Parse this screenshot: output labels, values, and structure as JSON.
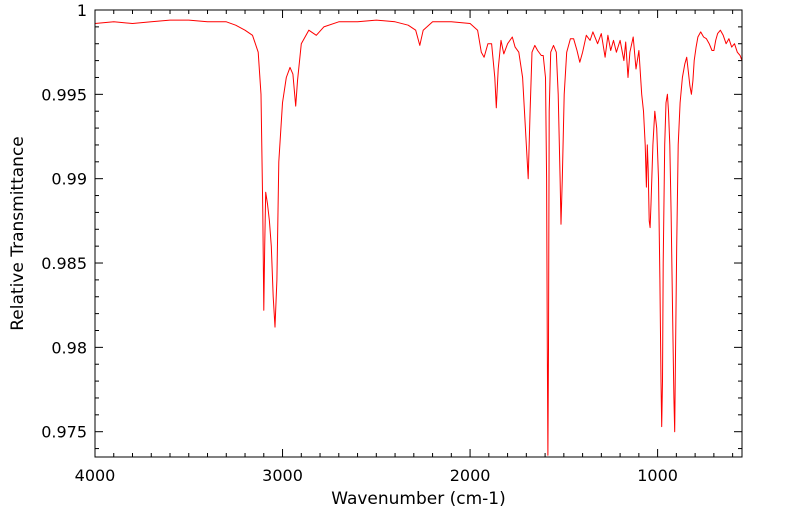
{
  "chart_data": {
    "type": "line",
    "title": "",
    "xlabel": "Wavenumber (cm-1)",
    "ylabel": "Relative Transmittance",
    "xlim": [
      4000,
      550
    ],
    "ylim": [
      0.9735,
      1.0
    ],
    "x_ticks": [
      {
        "value": 4000,
        "label": "4000"
      },
      {
        "value": 3000,
        "label": "3000"
      },
      {
        "value": 2000,
        "label": "2000"
      },
      {
        "value": 1000,
        "label": "1000"
      }
    ],
    "y_ticks": [
      {
        "value": 1.0,
        "label": "1"
      },
      {
        "value": 0.995,
        "label": "0.995"
      },
      {
        "value": 0.99,
        "label": "0.99"
      },
      {
        "value": 0.985,
        "label": "0.985"
      },
      {
        "value": 0.98,
        "label": "0.98"
      },
      {
        "value": 0.975,
        "label": "0.975"
      }
    ],
    "grid": false,
    "series": [
      {
        "color": "#ff0000",
        "points": [
          [
            4000,
            0.9992
          ],
          [
            3900,
            0.9993
          ],
          [
            3800,
            0.9992
          ],
          [
            3700,
            0.9993
          ],
          [
            3600,
            0.9994
          ],
          [
            3500,
            0.9994
          ],
          [
            3400,
            0.9993
          ],
          [
            3300,
            0.9993
          ],
          [
            3250,
            0.9991
          ],
          [
            3200,
            0.9988
          ],
          [
            3160,
            0.9985
          ],
          [
            3130,
            0.9975
          ],
          [
            3115,
            0.995
          ],
          [
            3105,
            0.988
          ],
          [
            3100,
            0.9822
          ],
          [
            3095,
            0.986
          ],
          [
            3090,
            0.9892
          ],
          [
            3080,
            0.9885
          ],
          [
            3070,
            0.9875
          ],
          [
            3060,
            0.986
          ],
          [
            3050,
            0.983
          ],
          [
            3040,
            0.9812
          ],
          [
            3030,
            0.984
          ],
          [
            3020,
            0.991
          ],
          [
            3000,
            0.9945
          ],
          [
            2980,
            0.996
          ],
          [
            2960,
            0.9966
          ],
          [
            2945,
            0.9962
          ],
          [
            2930,
            0.9943
          ],
          [
            2920,
            0.9958
          ],
          [
            2900,
            0.998
          ],
          [
            2860,
            0.9988
          ],
          [
            2820,
            0.9985
          ],
          [
            2780,
            0.999
          ],
          [
            2700,
            0.9993
          ],
          [
            2600,
            0.9993
          ],
          [
            2500,
            0.9994
          ],
          [
            2400,
            0.9993
          ],
          [
            2330,
            0.9991
          ],
          [
            2290,
            0.9988
          ],
          [
            2268,
            0.9979
          ],
          [
            2250,
            0.9988
          ],
          [
            2200,
            0.9993
          ],
          [
            2100,
            0.9993
          ],
          [
            2000,
            0.9992
          ],
          [
            1960,
            0.9988
          ],
          [
            1940,
            0.9975
          ],
          [
            1925,
            0.9972
          ],
          [
            1905,
            0.998
          ],
          [
            1885,
            0.998
          ],
          [
            1868,
            0.996
          ],
          [
            1860,
            0.9942
          ],
          [
            1850,
            0.9965
          ],
          [
            1835,
            0.9982
          ],
          [
            1820,
            0.9974
          ],
          [
            1800,
            0.998
          ],
          [
            1775,
            0.9984
          ],
          [
            1760,
            0.9978
          ],
          [
            1740,
            0.9975
          ],
          [
            1720,
            0.996
          ],
          [
            1705,
            0.993
          ],
          [
            1690,
            0.99
          ],
          [
            1680,
            0.994
          ],
          [
            1670,
            0.9975
          ],
          [
            1655,
            0.9979
          ],
          [
            1640,
            0.9976
          ],
          [
            1620,
            0.9973
          ],
          [
            1610,
            0.9973
          ],
          [
            1598,
            0.996
          ],
          [
            1592,
            0.99
          ],
          [
            1588,
            0.98
          ],
          [
            1585,
            0.9736
          ],
          [
            1582,
            0.98
          ],
          [
            1578,
            0.994
          ],
          [
            1570,
            0.9975
          ],
          [
            1555,
            0.9979
          ],
          [
            1540,
            0.9975
          ],
          [
            1530,
            0.995
          ],
          [
            1520,
            0.99
          ],
          [
            1515,
            0.9873
          ],
          [
            1508,
            0.99
          ],
          [
            1498,
            0.995
          ],
          [
            1485,
            0.9975
          ],
          [
            1465,
            0.9983
          ],
          [
            1448,
            0.9983
          ],
          [
            1430,
            0.9976
          ],
          [
            1415,
            0.9969
          ],
          [
            1400,
            0.9975
          ],
          [
            1380,
            0.9985
          ],
          [
            1360,
            0.9982
          ],
          [
            1345,
            0.9987
          ],
          [
            1320,
            0.998
          ],
          [
            1300,
            0.9986
          ],
          [
            1280,
            0.9972
          ],
          [
            1265,
            0.9985
          ],
          [
            1250,
            0.9976
          ],
          [
            1235,
            0.9982
          ],
          [
            1220,
            0.9975
          ],
          [
            1200,
            0.9982
          ],
          [
            1180,
            0.997
          ],
          [
            1170,
            0.9981
          ],
          [
            1158,
            0.996
          ],
          [
            1148,
            0.9975
          ],
          [
            1130,
            0.9984
          ],
          [
            1115,
            0.9965
          ],
          [
            1100,
            0.9976
          ],
          [
            1085,
            0.995
          ],
          [
            1075,
            0.994
          ],
          [
            1066,
            0.992
          ],
          [
            1060,
            0.9895
          ],
          [
            1055,
            0.992
          ],
          [
            1050,
            0.9905
          ],
          [
            1045,
            0.9875
          ],
          [
            1040,
            0.9871
          ],
          [
            1035,
            0.9885
          ],
          [
            1025,
            0.992
          ],
          [
            1015,
            0.994
          ],
          [
            1005,
            0.993
          ],
          [
            995,
            0.99
          ],
          [
            988,
            0.984
          ],
          [
            982,
            0.978
          ],
          [
            978,
            0.9753
          ],
          [
            974,
            0.978
          ],
          [
            970,
            0.985
          ],
          [
            962,
            0.992
          ],
          [
            955,
            0.9945
          ],
          [
            948,
            0.995
          ],
          [
            942,
            0.994
          ],
          [
            935,
            0.992
          ],
          [
            928,
            0.988
          ],
          [
            920,
            0.982
          ],
          [
            913,
            0.977
          ],
          [
            909,
            0.975
          ],
          [
            905,
            0.979
          ],
          [
            898,
            0.986
          ],
          [
            890,
            0.992
          ],
          [
            880,
            0.9945
          ],
          [
            868,
            0.996
          ],
          [
            855,
            0.9968
          ],
          [
            845,
            0.9972
          ],
          [
            835,
            0.9962
          ],
          [
            828,
            0.9955
          ],
          [
            820,
            0.995
          ],
          [
            812,
            0.9958
          ],
          [
            805,
            0.997
          ],
          [
            795,
            0.9978
          ],
          [
            785,
            0.9984
          ],
          [
            770,
            0.9987
          ],
          [
            755,
            0.9984
          ],
          [
            740,
            0.9983
          ],
          [
            725,
            0.998
          ],
          [
            710,
            0.9976
          ],
          [
            700,
            0.9976
          ],
          [
            690,
            0.9982
          ],
          [
            680,
            0.9986
          ],
          [
            665,
            0.9988
          ],
          [
            650,
            0.9985
          ],
          [
            635,
            0.998
          ],
          [
            620,
            0.9983
          ],
          [
            605,
            0.9978
          ],
          [
            590,
            0.998
          ],
          [
            575,
            0.9975
          ],
          [
            560,
            0.9973
          ],
          [
            550,
            0.997
          ]
        ]
      }
    ]
  }
}
